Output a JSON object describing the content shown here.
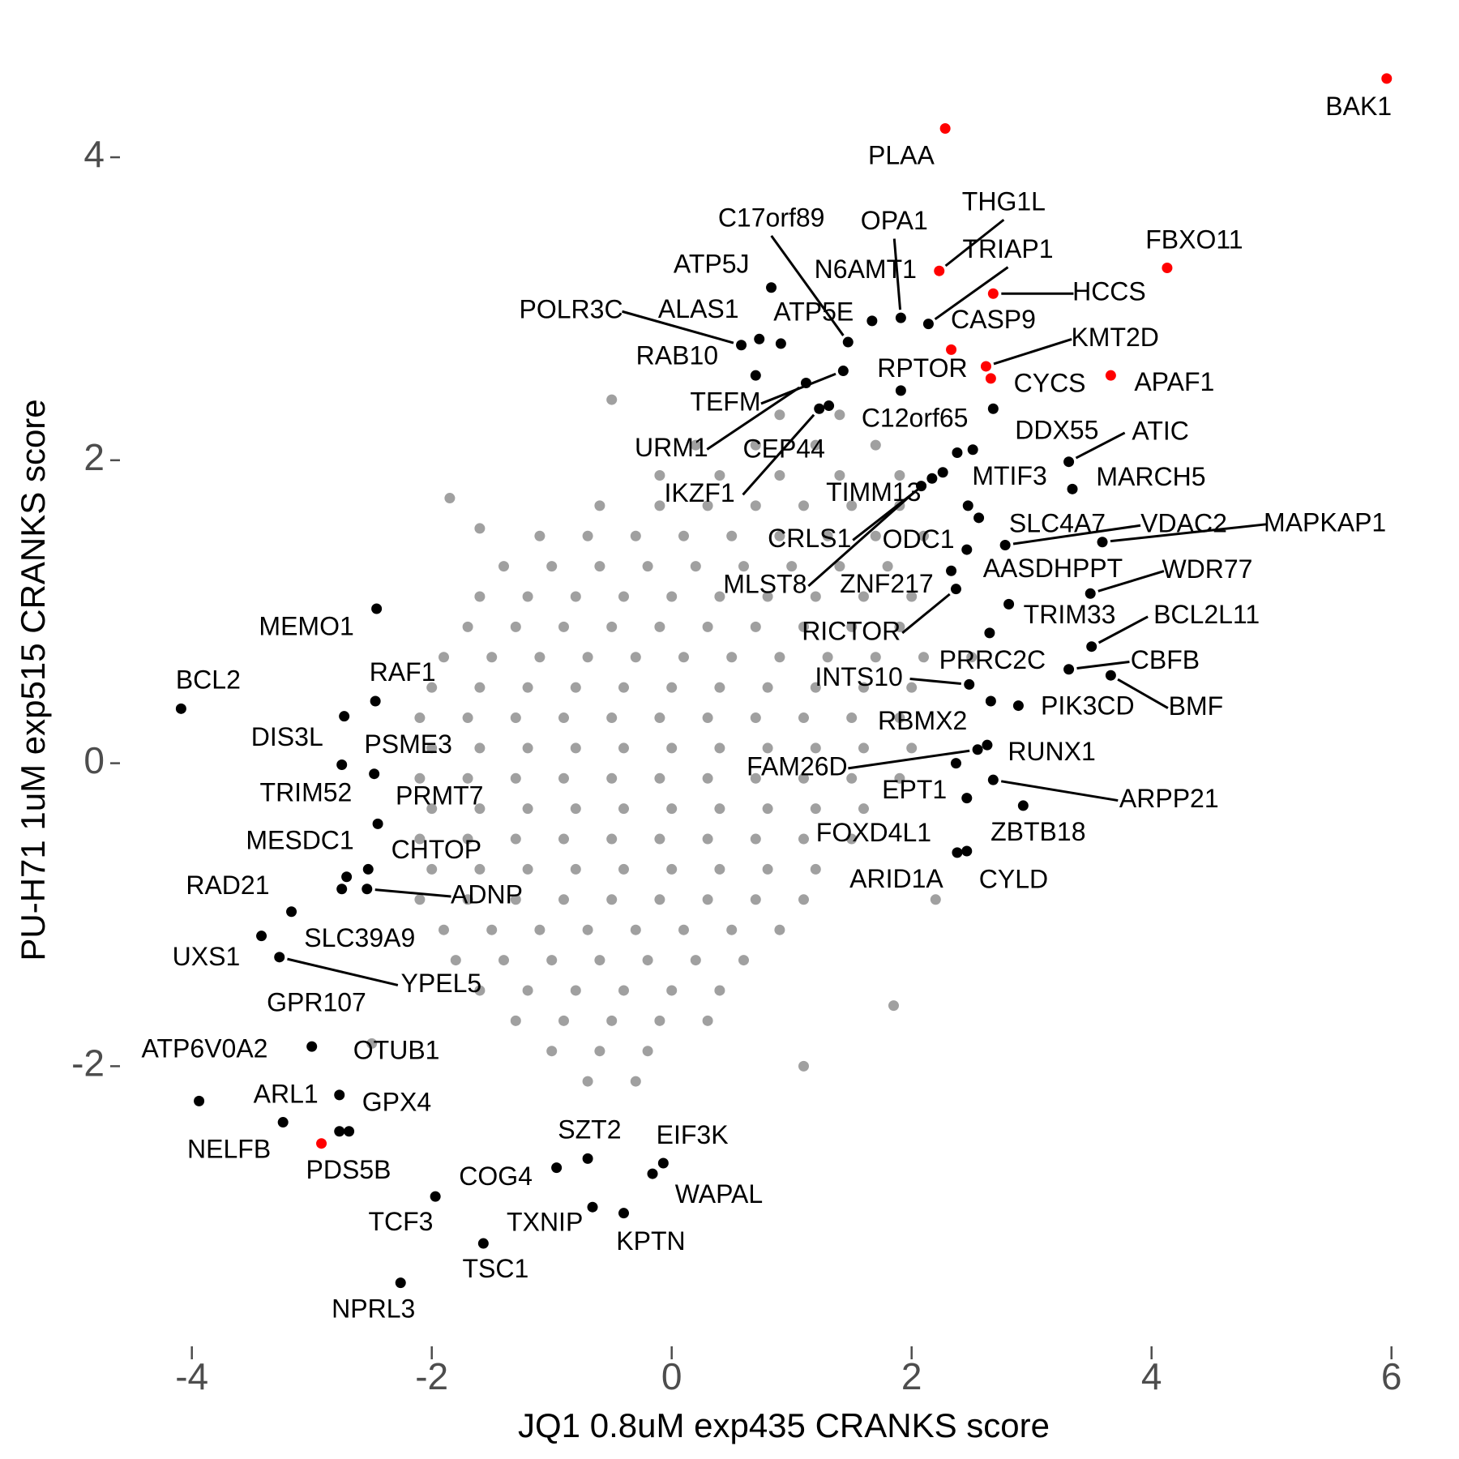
{
  "chart_data": {
    "type": "scatter",
    "xlabel": "JQ1 0.8uM exp435 CRANKS score",
    "ylabel": "PU-H71 1uM exp515 CRANKS score",
    "xlim": [
      -4.5,
      6.1
    ],
    "ylim": [
      -3.8,
      4.6
    ],
    "xticks": [
      -4,
      -2,
      0,
      2,
      4,
      6
    ],
    "yticks": [
      -2,
      0,
      2,
      4
    ],
    "series": [
      {
        "color": "#a0a0a0",
        "x": [
          0.9,
          1.4,
          0.2,
          0.7,
          1.2,
          1.7,
          -0.1,
          0.4,
          0.9,
          1.4,
          1.9,
          -0.6,
          -0.1,
          0.3,
          0.7,
          1.1,
          1.5,
          1.9,
          -1.1,
          -0.7,
          -0.3,
          0.1,
          0.5,
          0.9,
          1.3,
          1.7,
          2.1,
          -1.4,
          -1.0,
          -0.6,
          -0.2,
          0.2,
          0.6,
          1.0,
          1.4,
          1.8,
          -1.6,
          -1.2,
          -0.8,
          -0.4,
          0,
          0.4,
          0.8,
          1.2,
          1.6,
          2.0,
          -1.7,
          -1.3,
          -0.9,
          -0.5,
          -0.1,
          0.3,
          0.7,
          1.1,
          1.5,
          1.9,
          -1.9,
          -1.5,
          -1.1,
          -0.7,
          -0.3,
          0.1,
          0.5,
          0.9,
          1.3,
          1.7,
          2.1,
          -2.0,
          -1.6,
          -1.2,
          -0.8,
          -0.4,
          0,
          0.4,
          0.8,
          1.2,
          1.6,
          2.0,
          -2.1,
          -1.7,
          -1.3,
          -0.9,
          -0.5,
          -0.1,
          0.3,
          0.7,
          1.1,
          1.5,
          1.9,
          -2.0,
          -1.6,
          -1.2,
          -0.8,
          -0.4,
          0,
          0.4,
          0.8,
          1.2,
          1.6,
          2.0,
          -2.1,
          -1.7,
          -1.3,
          -0.9,
          -0.5,
          -0.1,
          0.3,
          0.7,
          1.1,
          1.5,
          1.9,
          -2.0,
          -1.6,
          -1.2,
          -0.8,
          -0.4,
          0,
          0.4,
          0.8,
          1.2,
          1.6,
          -2.1,
          -1.7,
          -1.3,
          -0.9,
          -0.5,
          -0.1,
          0.3,
          0.7,
          1.1,
          1.5,
          -2.0,
          -1.6,
          -1.2,
          -0.8,
          -0.4,
          0,
          0.4,
          0.8,
          1.2,
          -2.1,
          -1.7,
          -1.3,
          -0.9,
          -0.5,
          -0.1,
          0.3,
          0.7,
          1.1,
          -1.9,
          -1.5,
          -1.1,
          -0.7,
          -0.3,
          0.1,
          0.5,
          0.9,
          -1.8,
          -1.4,
          -1.0,
          -0.6,
          -0.2,
          0.2,
          0.6,
          -1.6,
          -1.2,
          -0.8,
          -0.4,
          0,
          0.4,
          -1.3,
          -0.9,
          -0.5,
          -0.1,
          0.3,
          -1.0,
          -0.6,
          -0.2,
          -0.7,
          -0.3,
          -0.5,
          -1.6,
          2.2,
          1.85,
          -2.5,
          -1.85,
          1.1,
          2.5
        ],
        "values": [
          2.3,
          2.3,
          2.1,
          2.1,
          2.1,
          2.1,
          1.9,
          1.9,
          1.9,
          1.9,
          1.9,
          1.7,
          1.7,
          1.7,
          1.7,
          1.7,
          1.7,
          1.7,
          1.5,
          1.5,
          1.5,
          1.5,
          1.5,
          1.5,
          1.5,
          1.5,
          1.5,
          1.3,
          1.3,
          1.3,
          1.3,
          1.3,
          1.3,
          1.3,
          1.3,
          1.3,
          1.1,
          1.1,
          1.1,
          1.1,
          1.1,
          1.1,
          1.1,
          1.1,
          1.1,
          1.1,
          0.9,
          0.9,
          0.9,
          0.9,
          0.9,
          0.9,
          0.9,
          0.9,
          0.9,
          0.9,
          0.7,
          0.7,
          0.7,
          0.7,
          0.7,
          0.7,
          0.7,
          0.7,
          0.7,
          0.7,
          0.7,
          0.5,
          0.5,
          0.5,
          0.5,
          0.5,
          0.5,
          0.5,
          0.5,
          0.5,
          0.5,
          0.5,
          0.3,
          0.3,
          0.3,
          0.3,
          0.3,
          0.3,
          0.3,
          0.3,
          0.3,
          0.3,
          0.3,
          0.1,
          0.1,
          0.1,
          0.1,
          0.1,
          0.1,
          0.1,
          0.1,
          0.1,
          0.1,
          0.1,
          -0.1,
          -0.1,
          -0.1,
          -0.1,
          -0.1,
          -0.1,
          -0.1,
          -0.1,
          -0.1,
          -0.1,
          -0.1,
          -0.3,
          -0.3,
          -0.3,
          -0.3,
          -0.3,
          -0.3,
          -0.3,
          -0.3,
          -0.3,
          -0.3,
          -0.5,
          -0.5,
          -0.5,
          -0.5,
          -0.5,
          -0.5,
          -0.5,
          -0.5,
          -0.5,
          -0.5,
          -0.7,
          -0.7,
          -0.7,
          -0.7,
          -0.7,
          -0.7,
          -0.7,
          -0.7,
          -0.7,
          -0.9,
          -0.9,
          -0.9,
          -0.9,
          -0.9,
          -0.9,
          -0.9,
          -0.9,
          -0.9,
          -1.1,
          -1.1,
          -1.1,
          -1.1,
          -1.1,
          -1.1,
          -1.1,
          -1.1,
          -1.3,
          -1.3,
          -1.3,
          -1.3,
          -1.3,
          -1.3,
          -1.3,
          -1.5,
          -1.5,
          -1.5,
          -1.5,
          -1.5,
          -1.5,
          -1.7,
          -1.7,
          -1.7,
          -1.7,
          -1.7,
          -1.9,
          -1.9,
          -1.9,
          -2.1,
          -2.1,
          2.4,
          1.55,
          -0.9,
          -1.6,
          -1.85,
          1.75,
          -2.0,
          0.7
        ]
      },
      {
        "color": "#000000",
        "labels": [
          "OPA1",
          "TRIAP1",
          "N6AMT1",
          "C17orf89",
          "ATP5J",
          "ATP5E",
          "ALAS1",
          "POLR3C",
          "RAB10",
          "RPTOR",
          "TEFM",
          "URM1",
          "C12orf65",
          "IKZF1",
          "CEP44",
          "DDX55",
          "ATIC",
          "MARCH5",
          "MTIF3",
          "TIMM13",
          "CRLS1",
          "MLST8",
          "ODC1",
          "SLC4A7",
          "VDAC2",
          "MAPKAP1",
          "AASDHPPT",
          "WDR77",
          "ZNF217",
          "RICTOR",
          "TRIM33",
          "BCL2L11",
          "PRRC2C",
          "CBFB",
          "BMF",
          "INTS10",
          "PIK3CD",
          "RBMX2",
          "RUNX1",
          "FAM26D",
          "EPT1",
          "ARPP21",
          "ZBTB18",
          "FOXD4L1",
          "ARID1A",
          "CYLD",
          "MEMO1",
          "BCL2",
          "RAF1",
          "DIS3L",
          "PSME3",
          "TRIM52",
          "PRMT7",
          "MESDC1",
          "CHTOP",
          "RAD21",
          "ADNP",
          "SLC39A9",
          "UXS1",
          "YPEL5",
          "GPR107",
          "ATP6V0A2",
          "OTUB1",
          "ARL1",
          "GPX4",
          "NELFB",
          "SZT2",
          "EIF3K",
          "WAPAL",
          "COG4",
          "TCF3",
          "TXNIP",
          "KPTN",
          "TSC1",
          "NPRL3"
        ],
        "x": [
          1.91,
          2.14,
          1.67,
          1.47,
          0.83,
          0.91,
          0.73,
          0.58,
          0.7,
          1.91,
          1.43,
          1.12,
          2.51,
          1.23,
          1.31,
          2.68,
          3.31,
          3.34,
          2.38,
          2.26,
          2.17,
          2.08,
          2.47,
          2.56,
          2.78,
          3.59,
          2.46,
          3.49,
          2.33,
          2.37,
          2.81,
          3.5,
          2.65,
          3.31,
          3.66,
          2.48,
          2.89,
          2.66,
          2.63,
          2.55,
          2.46,
          2.68,
          2.93,
          2.37,
          2.38,
          2.46,
          -2.46,
          -4.09,
          -2.47,
          -2.73,
          -2.75,
          -2.48,
          -2.45,
          -2.53,
          -2.71,
          -2.75,
          -2.54,
          -3.17,
          -3.42,
          -3.27,
          -3.0,
          -3.94,
          -2.77,
          -3.24,
          -2.69,
          -2.77,
          -0.7,
          -0.07,
          -0.16,
          -0.96,
          -1.97,
          -0.66,
          -0.4,
          -1.57,
          -2.26
        ],
        "values": [
          2.94,
          2.9,
          2.92,
          2.78,
          3.14,
          2.77,
          2.8,
          2.76,
          2.56,
          2.46,
          2.59,
          2.51,
          2.07,
          2.34,
          2.36,
          2.34,
          1.99,
          1.81,
          2.05,
          1.92,
          1.88,
          1.83,
          1.7,
          1.62,
          1.44,
          1.46,
          1.41,
          1.12,
          1.27,
          1.15,
          1.05,
          0.77,
          0.86,
          0.62,
          0.58,
          0.52,
          0.38,
          0.41,
          0.12,
          0.09,
          -0.23,
          -0.11,
          -0.28,
          0,
          -0.59,
          -0.58,
          1.02,
          0.36,
          0.41,
          0.31,
          -0.01,
          -0.07,
          -0.4,
          -0.7,
          -0.75,
          -0.83,
          -0.83,
          -0.98,
          -1.14,
          -1.28,
          -1.87,
          -2.23,
          -2.19,
          -2.37,
          -2.43,
          -2.43,
          -2.61,
          -2.64,
          -2.71,
          -2.67,
          -2.86,
          -2.93,
          -2.97,
          -3.17,
          -3.43
        ]
      },
      {
        "color": "#ff0000",
        "labels": [
          "BAK1",
          "PLAA",
          "FBXO11",
          "HCCS",
          "THG1L",
          "CASP9",
          "KMT2D",
          "CYCS",
          "APAF1",
          "PDS5B"
        ],
        "x": [
          5.96,
          2.28,
          4.13,
          2.68,
          2.23,
          2.33,
          2.62,
          2.66,
          3.66,
          -2.92
        ],
        "values": [
          4.52,
          4.19,
          3.27,
          3.1,
          3.25,
          2.73,
          2.62,
          2.54,
          2.56,
          -2.51
        ]
      }
    ]
  }
}
